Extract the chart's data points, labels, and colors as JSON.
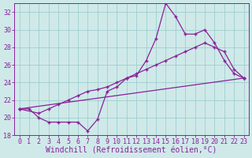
{
  "background_color": "#cfe9e9",
  "grid_color": "#9ecece",
  "line_color": "#882299",
  "xlim": [
    -0.5,
    23.5
  ],
  "ylim": [
    18,
    33
  ],
  "yticks": [
    18,
    20,
    22,
    24,
    26,
    28,
    30,
    32
  ],
  "xtick_labels": [
    "0",
    "1",
    "2",
    "3",
    "4",
    "5",
    "6",
    "7",
    "8",
    "9",
    "10",
    "11",
    "12",
    "13",
    "14",
    "15",
    "16",
    "17",
    "18",
    "19",
    "20",
    "21",
    "22",
    "23"
  ],
  "xlabel": "Windchill (Refroidissement éolien,°C)",
  "line1_x": [
    0,
    1,
    2,
    3,
    4,
    5,
    6,
    7,
    8,
    9,
    10,
    11,
    12,
    13,
    14,
    15,
    16,
    17,
    18,
    19,
    20,
    21,
    22,
    23
  ],
  "line1_y": [
    21,
    21,
    20,
    19.5,
    19.5,
    19.5,
    19.5,
    18.5,
    19.8,
    23.0,
    23.5,
    24.5,
    24.8,
    26.5,
    29.0,
    33.0,
    31.5,
    29.5,
    29.5,
    30.0,
    28.5,
    26.5,
    25.0,
    24.5
  ],
  "line2_x": [
    0,
    2,
    3,
    4,
    5,
    6,
    7,
    8,
    9,
    10,
    11,
    12,
    13,
    14,
    15,
    16,
    17,
    18,
    19,
    20,
    21,
    22,
    23
  ],
  "line2_y": [
    21,
    20.5,
    21.0,
    21.5,
    22.0,
    22.5,
    23.0,
    23.2,
    23.5,
    24.0,
    24.5,
    25.0,
    25.5,
    26.0,
    26.5,
    27.0,
    27.5,
    28.0,
    28.5,
    28.0,
    27.5,
    25.5,
    24.5
  ],
  "line3_x": [
    0,
    23
  ],
  "line3_y": [
    21,
    24.5
  ],
  "font_size_label": 7,
  "font_size_tick": 6
}
